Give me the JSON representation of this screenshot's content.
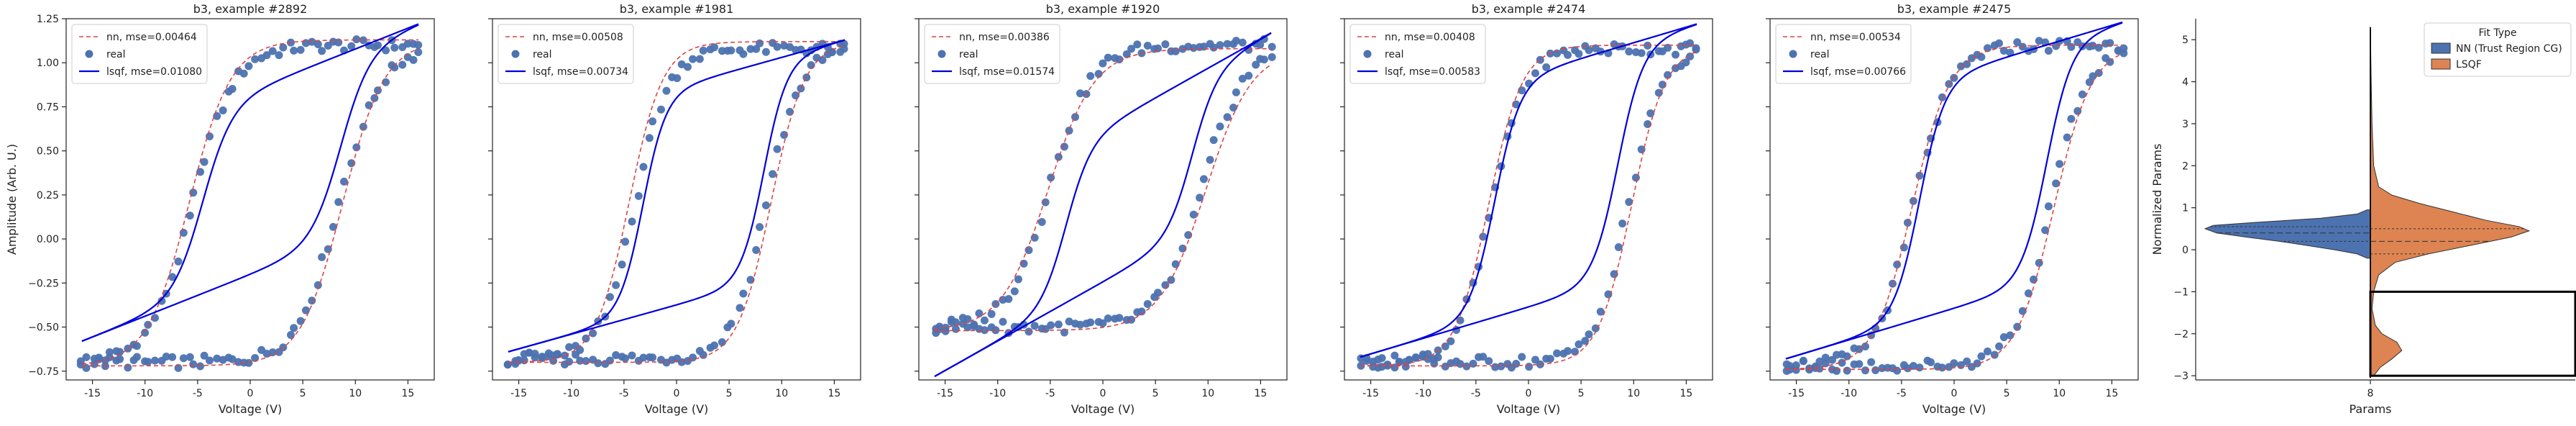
{
  "chart_data": [
    {
      "type": "line",
      "title": "b3, example #2892",
      "xlabel": "Voltage (V)",
      "ylabel": "Amplitude (Arb. U.)",
      "xlim": [
        -17.5,
        17.5
      ],
      "ylim": [
        -0.8,
        1.25
      ],
      "xticks": [
        -15,
        -10,
        -5,
        0,
        5,
        10,
        15
      ],
      "yticks": [
        -0.75,
        -0.5,
        -0.25,
        0.0,
        0.25,
        0.5,
        0.75,
        1.0,
        1.25
      ],
      "ytick_labels": [
        "−0.75",
        "−0.50",
        "−0.25",
        "0.00",
        "0.25",
        "0.50",
        "0.75",
        "1.00",
        "1.25"
      ],
      "show_yticklabels": true,
      "legend": {
        "placement": "top-left",
        "entries": [
          "nn, mse=0.00464",
          "real",
          "lsqf, mse=0.01080"
        ]
      },
      "loop": {
        "ymin": -0.7,
        "ymax": 1.1,
        "upper_center": -5.5,
        "lower_center": 8.5,
        "width": 2.0,
        "curve_span": 16.0
      },
      "nn": {
        "ymin": -0.72,
        "ymax": 1.13,
        "upper_center": -5.8,
        "lower_center": 8.8,
        "width": 2.0
      },
      "lsqf": {
        "ymin": -0.58,
        "ymax": 1.22,
        "upper_center": -4.5,
        "lower_center": 8.6,
        "width": 1.4,
        "linear_frac": 0.42,
        "curve_span": 16.0
      }
    },
    {
      "type": "line",
      "title": "b3, example #1981",
      "xlabel": "Voltage (V)",
      "ylabel": "",
      "xlim": [
        -17.5,
        17.5
      ],
      "ylim": [
        -0.8,
        1.25
      ],
      "xticks": [
        -15,
        -10,
        -5,
        0,
        5,
        10,
        15
      ],
      "yticks": [
        -0.75,
        -0.5,
        -0.25,
        0.0,
        0.25,
        0.5,
        0.75,
        1.0,
        1.25
      ],
      "ytick_labels": [],
      "show_yticklabels": false,
      "legend": {
        "placement": "top-left",
        "entries": [
          "nn, mse=0.00508",
          "real",
          "lsqf, mse=0.00734"
        ]
      },
      "loop": {
        "ymin": -0.68,
        "ymax": 1.08,
        "upper_center": -4.0,
        "lower_center": 8.5,
        "width": 1.6,
        "curve_span": 16.0
      },
      "nn": {
        "ymin": -0.7,
        "ymax": 1.12,
        "upper_center": -4.5,
        "lower_center": 9.0,
        "width": 1.6
      },
      "lsqf": {
        "ymin": -0.64,
        "ymax": 1.13,
        "upper_center": -3.2,
        "lower_center": 8.3,
        "width": 1.1,
        "linear_frac": 0.3,
        "curve_span": 16.0
      }
    },
    {
      "type": "line",
      "title": "b3, example #1920",
      "xlabel": "Voltage (V)",
      "ylabel": "",
      "xlim": [
        -17.5,
        17.5
      ],
      "ylim": [
        -0.8,
        1.25
      ],
      "xticks": [
        -15,
        -10,
        -5,
        0,
        5,
        10,
        15
      ],
      "yticks": [
        -0.75,
        -0.5,
        -0.25,
        0.0,
        0.25,
        0.5,
        0.75,
        1.0,
        1.25
      ],
      "ytick_labels": [],
      "show_yticklabels": false,
      "legend": {
        "placement": "top-left",
        "entries": [
          "nn, mse=0.00386",
          "real",
          "lsqf, mse=0.01574"
        ]
      },
      "loop": {
        "ymin": -0.5,
        "ymax": 1.1,
        "upper_center": -5.0,
        "lower_center": 9.5,
        "width": 2.0,
        "curve_span": 16.0
      },
      "nn": {
        "ymin": -0.52,
        "ymax": 1.08,
        "upper_center": -5.2,
        "lower_center": 9.8,
        "width": 2.2
      },
      "lsqf": {
        "ymin": -0.78,
        "ymax": 1.17,
        "upper_center": -3.5,
        "lower_center": 8.5,
        "width": 1.2,
        "linear_frac": 0.55,
        "curve_span": 16.0
      }
    },
    {
      "type": "line",
      "title": "b3, example #2474",
      "xlabel": "Voltage (V)",
      "ylabel": "",
      "xlim": [
        -17.5,
        17.5
      ],
      "ylim": [
        -0.8,
        1.25
      ],
      "xticks": [
        -15,
        -10,
        -5,
        0,
        5,
        10,
        15
      ],
      "yticks": [
        -0.75,
        -0.5,
        -0.25,
        0.0,
        0.25,
        0.5,
        0.75,
        1.0,
        1.25
      ],
      "ytick_labels": [],
      "show_yticklabels": false,
      "legend": {
        "placement": "top-left",
        "entries": [
          "nn, mse=0.00408",
          "real",
          "lsqf, mse=0.00583"
        ]
      },
      "loop": {
        "ymin": -0.7,
        "ymax": 1.08,
        "upper_center": -3.5,
        "lower_center": 9.5,
        "width": 1.6,
        "curve_span": 16.0
      },
      "nn": {
        "ymin": -0.72,
        "ymax": 1.1,
        "upper_center": -3.8,
        "lower_center": 9.8,
        "width": 1.6
      },
      "lsqf": {
        "ymin": -0.67,
        "ymax": 1.22,
        "upper_center": -3.2,
        "lower_center": 8.5,
        "width": 1.2,
        "linear_frac": 0.3,
        "curve_span": 16.0
      }
    },
    {
      "type": "line",
      "title": "b3, example #2475",
      "xlabel": "Voltage (V)",
      "ylabel": "",
      "xlim": [
        -17.5,
        17.5
      ],
      "ylim": [
        -0.8,
        1.25
      ],
      "xticks": [
        -15,
        -10,
        -5,
        0,
        5,
        10,
        15
      ],
      "yticks": [
        -0.75,
        -0.5,
        -0.25,
        0.0,
        0.25,
        0.5,
        0.75,
        1.0,
        1.25
      ],
      "ytick_labels": [],
      "show_yticklabels": false,
      "legend": {
        "placement": "top-left",
        "entries": [
          "nn, mse=0.00534",
          "real",
          "lsqf, mse=0.00766"
        ]
      },
      "loop": {
        "ymin": -0.72,
        "ymax": 1.1,
        "upper_center": -3.8,
        "lower_center": 9.2,
        "width": 1.8,
        "curve_span": 16.0
      },
      "nn": {
        "ymin": -0.74,
        "ymax": 1.1,
        "upper_center": -4.0,
        "lower_center": 9.5,
        "width": 1.8
      },
      "lsqf": {
        "ymin": -0.68,
        "ymax": 1.23,
        "upper_center": -3.3,
        "lower_center": 8.8,
        "width": 1.2,
        "linear_frac": 0.3,
        "curve_span": 16.0
      }
    },
    {
      "type": "violin",
      "xlabel": "Params",
      "ylabel": "Normalized Params",
      "categories": [
        "8"
      ],
      "ylim": [
        -3.1,
        5.5
      ],
      "yticks": [
        -3,
        -2,
        -1,
        0,
        1,
        2,
        3,
        4,
        5
      ],
      "ytick_labels": [
        "−3",
        "−2",
        "−1",
        "0",
        "1",
        "2",
        "3",
        "4",
        "5"
      ],
      "legend": {
        "title": "Fit Type",
        "placement": "top-right",
        "entries": [
          {
            "name": "NN (Trust Region CG)",
            "color": "#4c72b0"
          },
          {
            "name": "LSQF",
            "color": "#dd8452"
          }
        ]
      },
      "nn_density": [
        [
          -0.2,
          0.02
        ],
        [
          -0.1,
          0.08
        ],
        [
          0.0,
          0.22
        ],
        [
          0.1,
          0.38
        ],
        [
          0.2,
          0.55
        ],
        [
          0.3,
          0.75
        ],
        [
          0.4,
          0.93
        ],
        [
          0.5,
          1.0
        ],
        [
          0.58,
          0.95
        ],
        [
          0.65,
          0.7
        ],
        [
          0.75,
          0.3
        ],
        [
          0.85,
          0.08
        ],
        [
          0.95,
          0.02
        ]
      ],
      "nn_quartiles": [
        0.2,
        0.4,
        0.55
      ],
      "lsqf_density": [
        [
          -3.0,
          0.02
        ],
        [
          -2.8,
          0.06
        ],
        [
          -2.6,
          0.13
        ],
        [
          -2.4,
          0.19
        ],
        [
          -2.2,
          0.16
        ],
        [
          -2.0,
          0.07
        ],
        [
          -1.8,
          0.03
        ],
        [
          -1.4,
          0.01
        ],
        [
          -1.0,
          0.02
        ],
        [
          -0.6,
          0.05
        ],
        [
          -0.3,
          0.15
        ],
        [
          -0.1,
          0.35
        ],
        [
          0.1,
          0.6
        ],
        [
          0.3,
          0.85
        ],
        [
          0.45,
          0.96
        ],
        [
          0.55,
          0.9
        ],
        [
          0.7,
          0.7
        ],
        [
          0.9,
          0.5
        ],
        [
          1.1,
          0.3
        ],
        [
          1.3,
          0.13
        ],
        [
          1.5,
          0.05
        ],
        [
          2.0,
          0.02
        ],
        [
          3.0,
          0.01
        ],
        [
          4.0,
          0.005
        ],
        [
          5.3,
          0.0
        ]
      ],
      "lsqf_quartiles": [
        -0.1,
        0.2,
        0.5
      ],
      "highlight_range": [
        -3.0,
        -1.0
      ]
    }
  ],
  "colors": {
    "nn": "#dd4444",
    "real": "#4c72b0",
    "lsqf": "#0000dd",
    "violin_nn": "#4c72b0",
    "violin_lsqf": "#dd8452"
  }
}
